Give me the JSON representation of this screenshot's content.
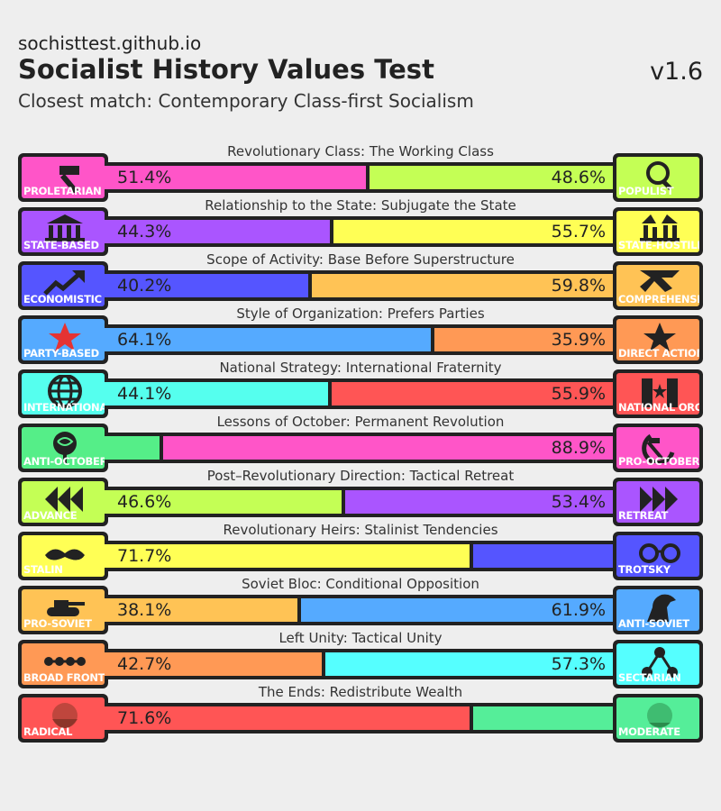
{
  "header": {
    "site": "sochisttest.github.io",
    "title": "Socialist History Values Test",
    "version": "v1.6",
    "closest_match": "Closest match: Contemporary Class-first Socialism"
  },
  "axes": [
    {
      "title": "Revolutionary Class: The Working Class",
      "left_label": "PROLETARIAN",
      "right_label": "POPULIST",
      "left_value": 51.4,
      "right_value": 48.6,
      "left_text": "51.4%",
      "right_text": "48.6%",
      "left_color": "#ff55c8",
      "right_color": "#c4ff55",
      "left_icon": "hammer-icon",
      "right_icon": "magnifier-icon"
    },
    {
      "title": "Relationship to the State: Subjugate the State",
      "left_label": "STATE-BASED",
      "right_label": "STATE-HOSTILE",
      "left_value": 44.3,
      "right_value": 55.7,
      "left_text": "44.3%",
      "right_text": "55.7%",
      "left_color": "#aa55ff",
      "right_color": "#ffff55",
      "left_icon": "government-building-icon",
      "right_icon": "broken-building-icon"
    },
    {
      "title": "Scope of Activity: Base Before Superstructure",
      "left_label": "ECONOMISTIC",
      "right_label": "COMPREHENSIVE",
      "left_value": 40.2,
      "right_value": 59.8,
      "left_text": "40.2%",
      "right_text": "59.8%",
      "left_color": "#5555ff",
      "right_color": "#ffc355",
      "left_icon": "rising-arrow-icon",
      "right_icon": "cross-arrows-icon"
    },
    {
      "title": "Style of Organization: Prefers Parties",
      "left_label": "PARTY-BASED",
      "right_label": "DIRECT ACTION",
      "left_value": 64.1,
      "right_value": 35.9,
      "left_text": "64.1%",
      "right_text": "35.9%",
      "left_color": "#55aaff",
      "right_color": "#ff9955",
      "left_icon": "red-star-icon",
      "right_icon": "black-star-icon"
    },
    {
      "title": "National Strategy: International Fraternity",
      "left_label": "INTERNATIONAL",
      "right_label": "NATIONAL ORG",
      "left_value": 44.1,
      "right_value": 55.9,
      "left_text": "44.1%",
      "right_text": "55.9%",
      "left_color": "#55ffee",
      "right_color": "#ff5555",
      "left_icon": "globe-icon",
      "right_icon": "national-flag-icon"
    },
    {
      "title": "Lessons of October: Permanent Revolution",
      "left_label": "ANTI-OCTOBER",
      "right_label": "PRO-OCTOBER",
      "left_value": 11.1,
      "right_value": 88.9,
      "left_text": "",
      "right_text": "88.9%",
      "left_color": "#55ee88",
      "right_color": "#ff55c8",
      "left_icon": "rose-icon",
      "right_icon": "hammer-sickle-icon"
    },
    {
      "title": "Post–Revolutionary Direction: Tactical Retreat",
      "left_label": "ADVANCE",
      "right_label": "RETREAT",
      "left_value": 46.6,
      "right_value": 53.4,
      "left_text": "46.6%",
      "right_text": "53.4%",
      "left_color": "#c4ff55",
      "right_color": "#aa55ff",
      "left_icon": "advance-arrows-icon",
      "right_icon": "retreat-arrows-icon"
    },
    {
      "title": "Revolutionary Heirs: Stalinist Tendencies",
      "left_label": "STALIN",
      "right_label": "TROTSKY",
      "left_value": 71.7,
      "right_value": 28.3,
      "left_text": "71.7%",
      "right_text": "",
      "left_color": "#ffff55",
      "right_color": "#5555ff",
      "left_icon": "mustache-icon",
      "right_icon": "glasses-icon"
    },
    {
      "title": "Soviet Bloc: Conditional Opposition",
      "left_label": "PRO-SOVIET",
      "right_label": "ANTI-SOVIET",
      "left_value": 38.1,
      "right_value": 61.9,
      "left_text": "38.1%",
      "right_text": "61.9%",
      "left_color": "#ffc355",
      "right_color": "#55aaff",
      "left_icon": "tank-icon",
      "right_icon": "horse-icon"
    },
    {
      "title": "Left Unity: Tactical Unity",
      "left_label": "BROAD FRONT",
      "right_label": "SECTARIAN",
      "left_value": 42.7,
      "right_value": 57.3,
      "left_text": "42.7%",
      "right_text": "57.3%",
      "left_color": "#ff9955",
      "right_color": "#55ffff",
      "left_icon": "linked-dots-icon",
      "right_icon": "split-network-icon"
    },
    {
      "title": "The Ends: Redistribute Wealth",
      "left_label": "RADICAL",
      "right_label": "MODERATE",
      "left_value": 71.6,
      "right_value": 28.4,
      "left_text": "71.6%",
      "right_text": "",
      "left_color": "#ff5555",
      "right_color": "#55ee99",
      "left_icon": "marx-portrait-icon",
      "right_icon": "bernstein-portrait-icon"
    }
  ]
}
